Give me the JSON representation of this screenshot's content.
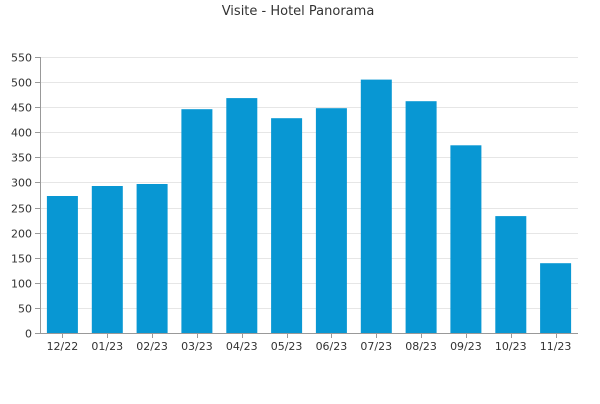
{
  "chart_data": {
    "type": "bar",
    "title": "Visite - Hotel Panorama",
    "xlabel": "",
    "ylabel": "",
    "categories": [
      "12/22",
      "01/23",
      "02/23",
      "03/23",
      "04/23",
      "05/23",
      "06/23",
      "07/23",
      "08/23",
      "09/23",
      "10/23",
      "11/23"
    ],
    "values": [
      273,
      293,
      297,
      446,
      468,
      428,
      448,
      505,
      462,
      374,
      233,
      139
    ],
    "ylim": [
      0,
      550
    ],
    "yticks": [
      0,
      50,
      100,
      150,
      200,
      250,
      300,
      350,
      400,
      450,
      500,
      550
    ],
    "grid": true,
    "legend": "none",
    "colors": {
      "bar": "#0897d3",
      "grid": "#e6e6e6",
      "axis": "#999999",
      "text": "#333333"
    }
  }
}
